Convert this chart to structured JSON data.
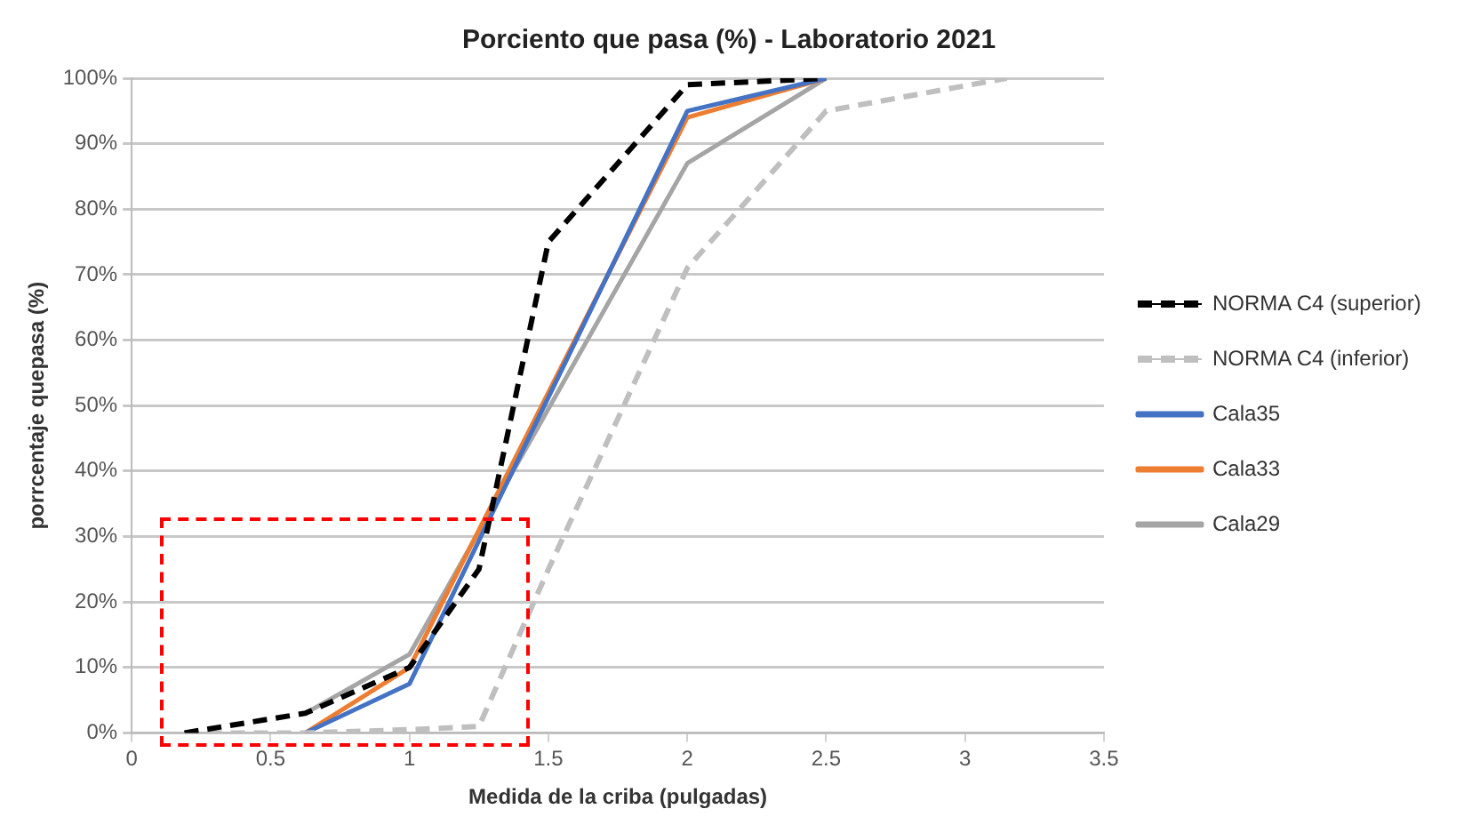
{
  "chart_data": {
    "type": "line",
    "title": "Porciento que pasa (%) - Laboratorio 2021",
    "xlabel": "Medida de la criba (pulgadas)",
    "ylabel": "porrcentaje quepasa (%)",
    "xlim": [
      0,
      3.5
    ],
    "xticks": [
      0,
      0.5,
      1,
      1.5,
      2,
      2.5,
      3,
      3.5
    ],
    "ylim": [
      0,
      100
    ],
    "yticks": [
      {
        "value": 0,
        "label": "0%"
      },
      {
        "value": 10,
        "label": "10%"
      },
      {
        "value": 20,
        "label": "20%"
      },
      {
        "value": 30,
        "label": "30%"
      },
      {
        "value": 40,
        "label": "40%"
      },
      {
        "value": 50,
        "label": "50%"
      },
      {
        "value": 60,
        "label": "60%"
      },
      {
        "value": 70,
        "label": "70%"
      },
      {
        "value": 80,
        "label": "80%"
      },
      {
        "value": 90,
        "label": "90%"
      },
      {
        "value": 100,
        "label": "100%"
      }
    ],
    "grid": "y",
    "legend": "right",
    "marker": "none",
    "series": [
      {
        "name": "NORMA C4 (superior)",
        "color": "#000000",
        "line_style": "dashed",
        "x": [
          0.19,
          0.625,
          1,
          1.25,
          1.5,
          2,
          2.5
        ],
        "values": [
          0,
          3,
          10,
          25,
          75,
          99,
          100
        ]
      },
      {
        "name": "NORMA C4 (inferior)",
        "color": "#bfbfbf",
        "line_style": "dashed",
        "x": [
          0.19,
          0.625,
          1,
          1.25,
          1.5,
          2,
          2.5,
          3.15
        ],
        "values": [
          0,
          0,
          0.5,
          1,
          25,
          71,
          95,
          100
        ]
      },
      {
        "name": "Cala35",
        "color": "#4472c4",
        "line_style": "solid",
        "x": [
          0.625,
          1,
          2,
          2.5
        ],
        "values": [
          0,
          7.5,
          95,
          100
        ]
      },
      {
        "name": "Cala33",
        "color": "#ed7d31",
        "line_style": "solid",
        "x": [
          0.625,
          1,
          2,
          2.5
        ],
        "values": [
          0,
          10,
          94,
          100
        ]
      },
      {
        "name": "Cala29",
        "color": "#a5a5a5",
        "line_style": "solid",
        "x": [
          0.625,
          1,
          2,
          2.5
        ],
        "values": [
          3,
          12,
          87,
          100
        ]
      }
    ]
  }
}
